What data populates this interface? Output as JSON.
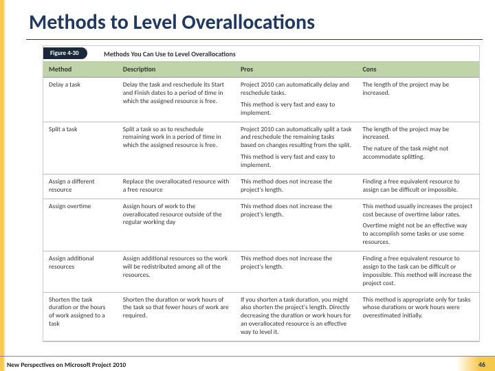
{
  "colors": {
    "title": "#1f3864",
    "accent": "#f6c84c",
    "header_bg": "#bfd4a8",
    "fig_tab_bg": "#1a2a3a",
    "border": "#bbb"
  },
  "title": "Methods to Level Overallocations",
  "figure": {
    "label": "Figure 4-30",
    "caption": "Methods You Can Use to Level Overallocations"
  },
  "table": {
    "columns": [
      "Method",
      "Description",
      "Pros",
      "Cons"
    ],
    "rows": [
      {
        "method": "Delay a task",
        "description": [
          "Delay the task and reschedule its Start and Finish dates to a period of time in which the assigned resource is free."
        ],
        "pros": [
          "Project 2010 can automatically delay and reschedule tasks.",
          "This method is very fast and easy to implement."
        ],
        "cons": [
          "The length of the project may be increased."
        ]
      },
      {
        "method": "Split a task",
        "description": [
          "Split a task so as to reschedule remaining work in a period of time in which the assigned resource is free."
        ],
        "pros": [
          "Project 2010 can automatically split a task and reschedule the remaining tasks based on changes resulting from the split.",
          "This method is very fast and easy to implement."
        ],
        "cons": [
          "The length of the project may be increased.",
          "The nature of the task might not accommodate splitting."
        ]
      },
      {
        "method": "Assign a different resource",
        "description": [
          "Replace the overallocated resource with a free resource"
        ],
        "pros": [
          "This method does not increase the project's length."
        ],
        "cons": [
          "Finding a free equivalent resource to assign can be difficult or impossible."
        ]
      },
      {
        "method": "Assign overtime",
        "description": [
          "Assign hours of work to the overallocated resource outside of the regular working day"
        ],
        "pros": [
          "This method does not increase the project's length."
        ],
        "cons": [
          "This method usually increases the project cost because of overtime labor rates.",
          "Overtime might not be an effective way to accomplish some tasks or use some resources."
        ]
      },
      {
        "method": "Assign additional resources",
        "description": [
          "Assign additional resources so the work will be redistributed among all of the resources."
        ],
        "pros": [
          "This method does not increase the project's length."
        ],
        "cons": [
          "Finding a free equivalent resource to assign to the task can be difficult or impossible. This method will increase the project cost."
        ]
      },
      {
        "method": "Shorten the task duration or the hours of work assigned to a task",
        "description": [
          "Shorten the duration or work hours of the task so that fewer hours of work are required."
        ],
        "pros": [
          "If you shorten a task duration, you might also shorten the project's length. Directly decreasing the duration or work hours for an overallocated resource is an effective way to level it."
        ],
        "cons": [
          "This method is appropriate only for tasks whose durations or work hours were overestimated initially."
        ]
      }
    ]
  },
  "footer": {
    "left": "New Perspectives on Microsoft Project 2010",
    "page": "46"
  }
}
